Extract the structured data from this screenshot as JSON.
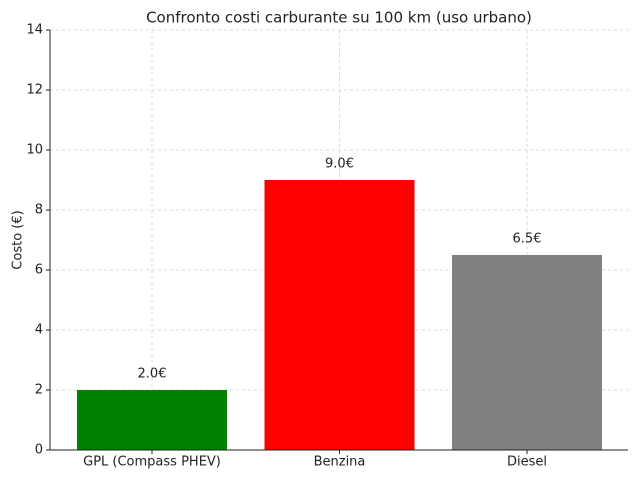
{
  "chart_data": {
    "type": "bar",
    "title": "Confronto costi carburante su 100 km (uso urbano)",
    "y_label": "Costo (€)",
    "categories": [
      "GPL (Compass PHEV)",
      "Benzina",
      "Diesel"
    ],
    "values": [
      2.0,
      9.0,
      6.5
    ],
    "value_labels": [
      "2.0€",
      "9.0€",
      "6.5€"
    ],
    "colors": [
      "#008000",
      "#ff0000",
      "#808080"
    ],
    "ylim": [
      0,
      14
    ],
    "yticks": [
      0,
      2,
      4,
      6,
      8,
      10,
      12,
      14
    ],
    "grid": true
  }
}
